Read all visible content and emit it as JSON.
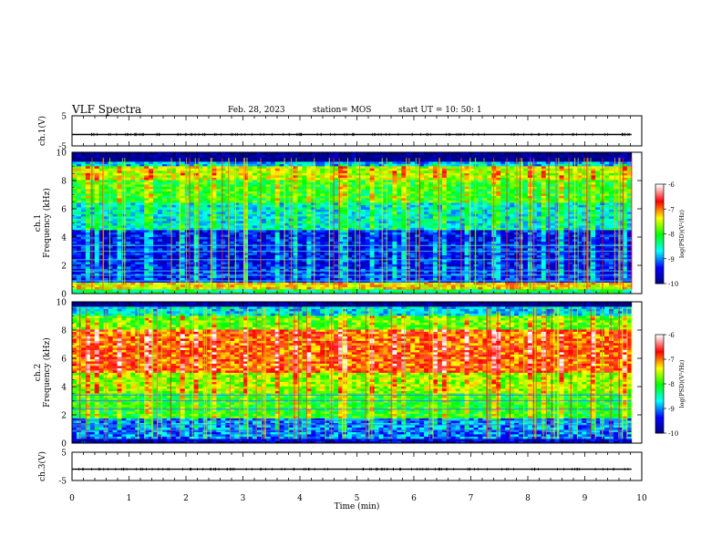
{
  "header": {
    "title": "VLF Spectra",
    "date": "Feb. 28, 2023",
    "station": "station= MOS",
    "start": "start UT =  10: 50: 1"
  },
  "colors": {
    "frame": "#000000",
    "background": "#ffffff",
    "colormap": [
      "#000080",
      "#0000ff",
      "#00ffff",
      "#00ff00",
      "#ffff00",
      "#ff0000",
      "#ffffff"
    ]
  },
  "chart_data": [
    {
      "type": "line",
      "panel": "ch.1 waveform",
      "ylabel": "ch.1(V)",
      "ylim": [
        -5,
        5
      ],
      "yticks": [
        "5",
        "-5"
      ],
      "x": [
        0,
        9.82
      ],
      "values": [
        -1.2,
        -1.2
      ]
    },
    {
      "type": "heatmap",
      "panel": "ch.1 spectrogram",
      "ylabel": "ch.1\nFrequency (kHz)",
      "ylim": [
        0,
        10
      ],
      "yticks": [
        "0",
        "2",
        "4",
        "6",
        "8",
        "10"
      ],
      "xlim": [
        0,
        10
      ],
      "data_end_min": 9.82,
      "colorbar": {
        "label": "log(PSD)(V²/Hz)",
        "range": [
          -10,
          -6
        ],
        "ticks": [
          "-6",
          "-7",
          "-8",
          "-9",
          "-10"
        ]
      },
      "bands": [
        {
          "fmin": 0.0,
          "fmax": 0.3,
          "level": -8.3
        },
        {
          "fmin": 0.3,
          "fmax": 0.8,
          "level": -7.3
        },
        {
          "fmin": 0.8,
          "fmax": 2.0,
          "level": -9.3
        },
        {
          "fmin": 2.0,
          "fmax": 4.5,
          "level": -9.4
        },
        {
          "fmin": 4.5,
          "fmax": 6.5,
          "level": -8.6
        },
        {
          "fmin": 6.5,
          "fmax": 8.0,
          "level": -8.0
        },
        {
          "fmin": 8.0,
          "fmax": 9.0,
          "level": -7.5
        },
        {
          "fmin": 9.0,
          "fmax": 9.4,
          "level": -8.8
        },
        {
          "fmin": 9.4,
          "fmax": 10.0,
          "level": -10.0
        }
      ]
    },
    {
      "type": "heatmap",
      "panel": "ch.2 spectrogram",
      "ylabel": "ch.2\nFrequency (kHz)",
      "ylim": [
        0,
        10
      ],
      "yticks": [
        "0",
        "2",
        "4",
        "6",
        "8",
        "10"
      ],
      "xlim": [
        0,
        10
      ],
      "data_end_min": 9.82,
      "colorbar": {
        "label": "log(PSD)(V²/Hz)",
        "range": [
          -10,
          -6
        ],
        "ticks": [
          "-6",
          "-7",
          "-8",
          "-9",
          "-10"
        ]
      },
      "bands": [
        {
          "fmin": 0.0,
          "fmax": 0.4,
          "level": -9.6
        },
        {
          "fmin": 0.4,
          "fmax": 1.8,
          "level": -9.0
        },
        {
          "fmin": 1.8,
          "fmax": 3.5,
          "level": -8.0
        },
        {
          "fmin": 3.5,
          "fmax": 5.0,
          "level": -7.6
        },
        {
          "fmin": 5.0,
          "fmax": 8.0,
          "level": -6.9
        },
        {
          "fmin": 8.0,
          "fmax": 9.0,
          "level": -7.8
        },
        {
          "fmin": 9.0,
          "fmax": 9.6,
          "level": -8.7
        },
        {
          "fmin": 9.6,
          "fmax": 10.0,
          "level": -10.0
        }
      ]
    },
    {
      "type": "line",
      "panel": "ch.3 waveform",
      "ylabel": "ch.3(V)",
      "ylim": [
        -5,
        5
      ],
      "yticks": [
        "5",
        "-5"
      ],
      "x": [
        0,
        9.82
      ],
      "values": [
        -1.0,
        -1.0
      ]
    }
  ],
  "xaxis": {
    "label": "Time (min)",
    "range": [
      0,
      10
    ],
    "ticks": [
      "0",
      "1",
      "2",
      "3",
      "4",
      "5",
      "6",
      "7",
      "8",
      "9",
      "10"
    ]
  }
}
